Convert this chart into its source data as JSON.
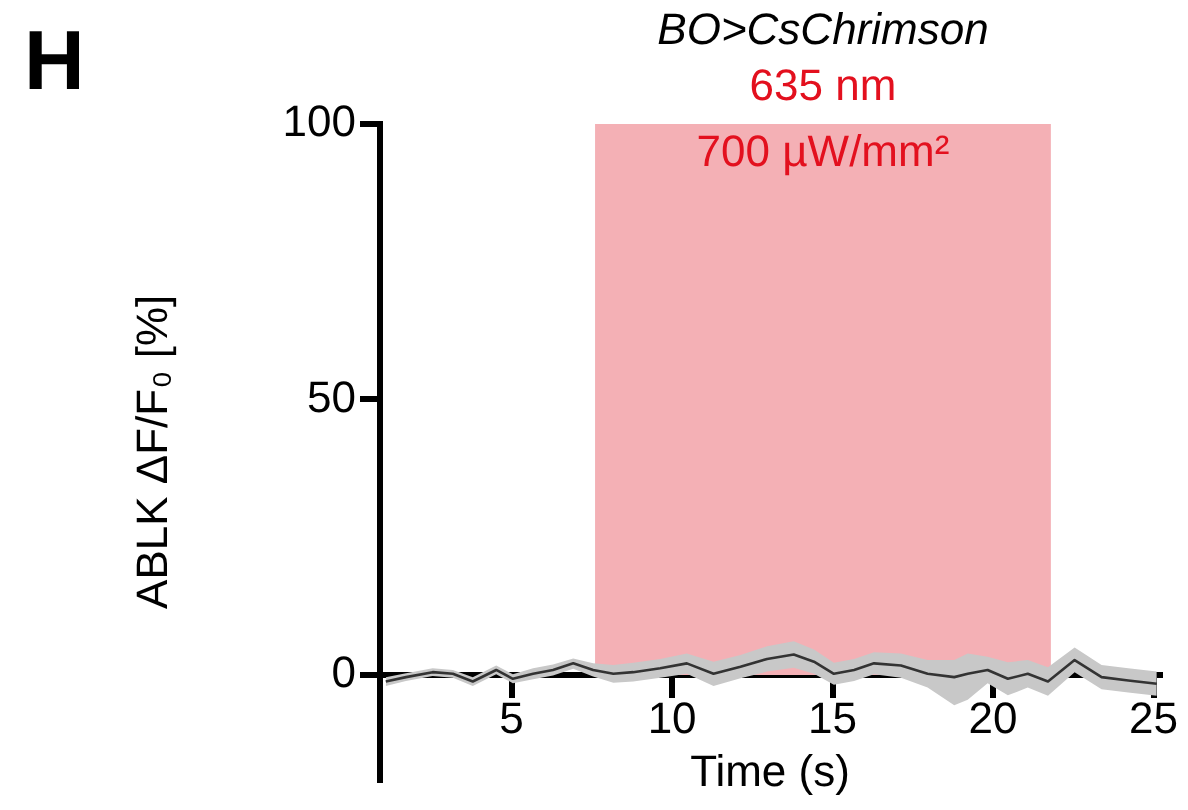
{
  "chart_data": {
    "type": "line",
    "title": "BO>CsChrimson",
    "subtitle": "635 nm",
    "ylabel": "ABLK ΔF/F₀ [%]",
    "xlabel": "Time (s)",
    "annotations": [
      "H"
    ],
    "x": [
      1.08,
      1.71,
      2.54,
      3.17,
      3.79,
      4.52,
      5.04,
      5.67,
      6.29,
      6.92,
      7.54,
      8.17,
      8.79,
      9.63,
      10.46,
      11.29,
      12.13,
      12.96,
      13.79,
      14.42,
      15.04,
      15.67,
      16.29,
      17.13,
      17.96,
      18.79,
      19.21,
      19.83,
      20.46,
      21.08,
      21.71,
      22.54,
      23.38,
      24.21,
      25.1
    ],
    "series": [
      {
        "color": "#333333",
        "values": [
          -1.2,
          -0.4,
          0.5,
          0.2,
          -1.2,
          0.9,
          -0.7,
          0.2,
          0.9,
          2.1,
          0.9,
          0.2,
          0.5,
          1.2,
          2.1,
          0.2,
          1.5,
          2.9,
          3.7,
          2.4,
          0.2,
          0.9,
          2.1,
          1.7,
          0.2,
          -0.4,
          0.2,
          0.9,
          -0.7,
          0.2,
          -1.2,
          2.7,
          -0.4,
          -1,
          -1.6
        ],
        "lower": [
          -2,
          -1.1,
          -0.2,
          -0.5,
          -2,
          0.1,
          -1.5,
          -0.8,
          -0.1,
          1.1,
          -0.3,
          -1.4,
          -1.2,
          -0.5,
          0.2,
          -2,
          -0.6,
          0.6,
          1.3,
          0.2,
          -1.8,
          -1.1,
          0.1,
          -0.5,
          -2.3,
          -5.5,
          -4.5,
          -1.5,
          -3.7,
          -2.3,
          -3.8,
          0.5,
          -2.6,
          -3.2,
          -3.8
        ],
        "upper": [
          -0.4,
          0.3,
          1.2,
          0.9,
          -0.4,
          1.7,
          0.1,
          1.2,
          1.9,
          3,
          2.1,
          1.8,
          2.2,
          2.9,
          3.9,
          2.4,
          3.6,
          5.2,
          6.1,
          4.6,
          2.2,
          2.9,
          4.1,
          3.9,
          2.7,
          2.7,
          3.9,
          3.3,
          2.3,
          2.7,
          1.4,
          5,
          1.8,
          1.2,
          0.6
        ]
      }
    ],
    "xlim": [
      0.9,
      25.2
    ],
    "xticks": [
      5,
      10,
      15,
      20,
      25
    ],
    "ylim": [
      -19,
      100
    ],
    "yticks": [
      0,
      50,
      100
    ],
    "bands": [
      {
        "axis": "x",
        "from": 7.6,
        "to": 21.8,
        "label": "700 µW/mm²",
        "color": "#f4b0b5"
      }
    ],
    "grid": false,
    "legend": false,
    "marker": "none",
    "line_style": "solid"
  }
}
